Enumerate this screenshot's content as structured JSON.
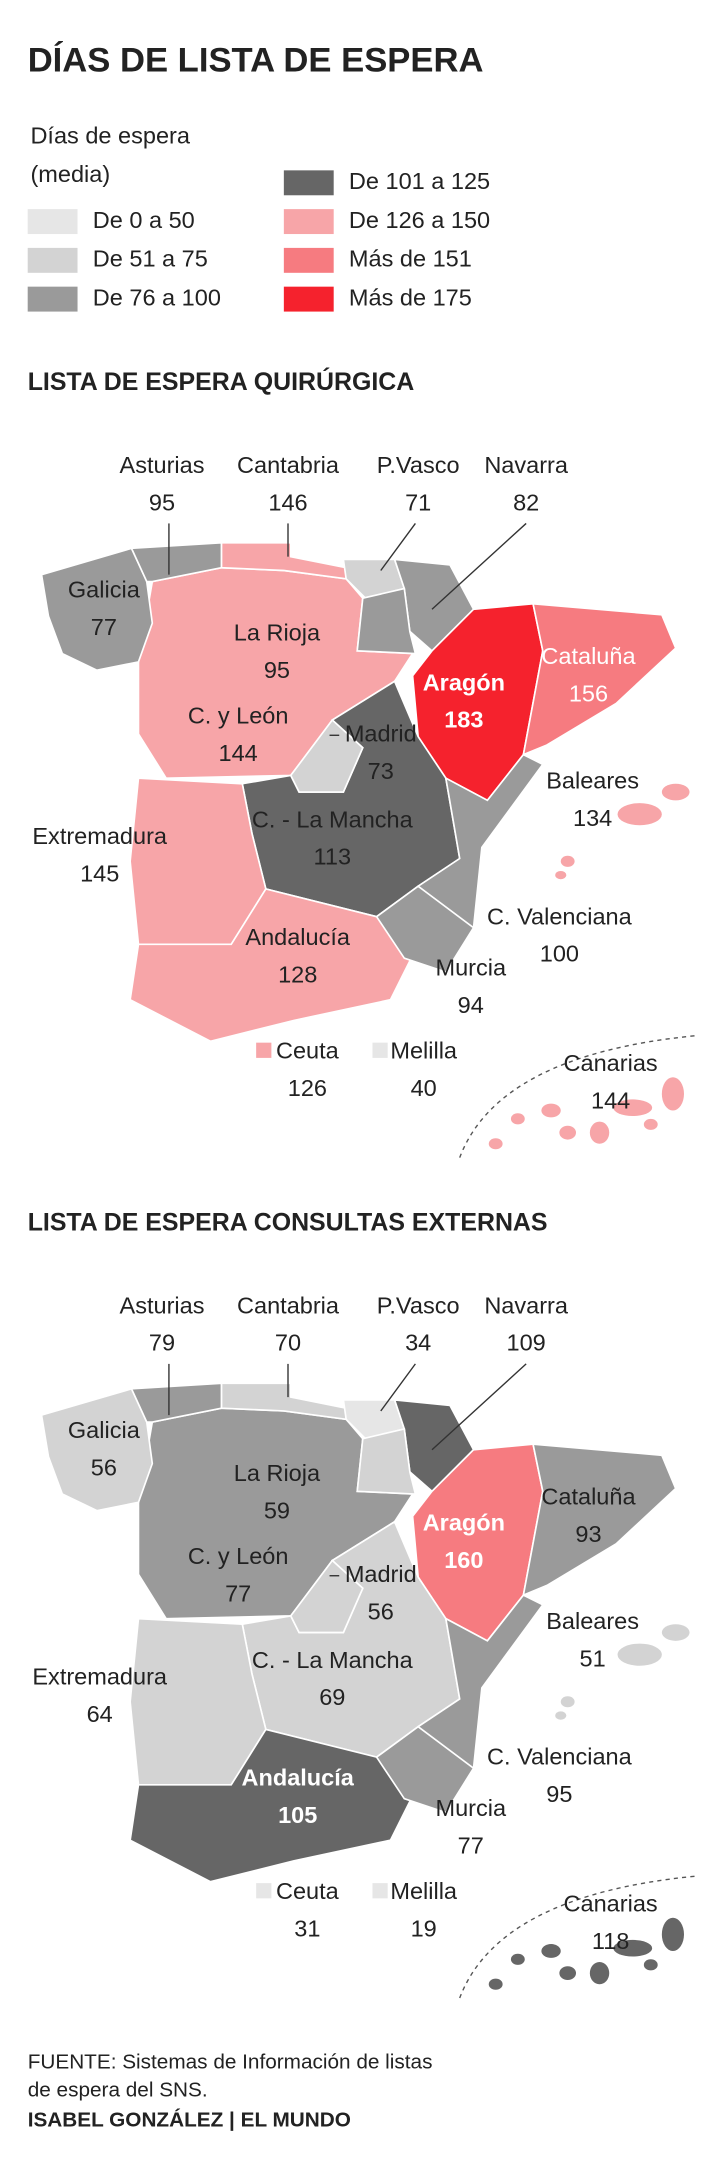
{
  "title": "DÍAS DE LISTA DE ESPERA",
  "legend": {
    "title": [
      "Días de espera",
      "(media)"
    ],
    "items": [
      {
        "label": "De 0 a 50",
        "color": "#e6e6e6"
      },
      {
        "label": "De 51 a 75",
        "color": "#d3d3d3"
      },
      {
        "label": "De 76 a 100",
        "color": "#9a9a9a"
      },
      {
        "label": "De 101 a 125",
        "color": "#666666"
      },
      {
        "label": "De 126 a 150",
        "color": "#f7a5a8"
      },
      {
        "label": "Más de 151",
        "color": "#f67b80"
      },
      {
        "label": "Más de 175",
        "color": "#f5222d"
      }
    ]
  },
  "maps": [
    {
      "title": "LISTA DE ESPERA QUIRÚRGICA",
      "regions": [
        {
          "name": "C. y León",
          "value": 144,
          "color": "#f7a5a8"
        },
        {
          "name": "Galicia",
          "value": 77,
          "color": "#9a9a9a"
        },
        {
          "name": "Asturias",
          "value": 95,
          "color": "#9a9a9a"
        },
        {
          "name": "Cantabria",
          "value": 146,
          "color": "#f7a5a8"
        },
        {
          "name": "P.Vasco",
          "value": 71,
          "color": "#d3d3d3"
        },
        {
          "name": "Navarra",
          "value": 82,
          "color": "#9a9a9a"
        },
        {
          "name": "La Rioja",
          "value": 95,
          "color": "#9a9a9a"
        },
        {
          "name": "Aragón",
          "value": 183,
          "color": "#f5222d"
        },
        {
          "name": "Cataluña",
          "value": 156,
          "color": "#f67b80"
        },
        {
          "name": "C. - La Mancha",
          "value": 113,
          "color": "#666666"
        },
        {
          "name": "Madrid",
          "value": 73,
          "color": "#d3d3d3"
        },
        {
          "name": "Extremadura",
          "value": 145,
          "color": "#f7a5a8"
        },
        {
          "name": "Andalucía",
          "value": 128,
          "color": "#f7a5a8"
        },
        {
          "name": "C. Valenciana",
          "value": 100,
          "color": "#9a9a9a"
        },
        {
          "name": "Murcia",
          "value": 94,
          "color": "#9a9a9a"
        },
        {
          "name": "Baleares",
          "value": 134,
          "color": "#f7a5a8"
        },
        {
          "name": "Canarias",
          "value": 144,
          "color": "#f7a5a8"
        },
        {
          "name": "Ceuta",
          "value": 126,
          "color": "#f7a5a8"
        },
        {
          "name": "Melilla",
          "value": 40,
          "color": "#e6e6e6"
        }
      ]
    },
    {
      "title": "LISTA DE ESPERA CONSULTAS EXTERNAS",
      "regions": [
        {
          "name": "C. y León",
          "value": 77,
          "color": "#9a9a9a"
        },
        {
          "name": "Galicia",
          "value": 56,
          "color": "#d3d3d3"
        },
        {
          "name": "Asturias",
          "value": 79,
          "color": "#9a9a9a"
        },
        {
          "name": "Cantabria",
          "value": 70,
          "color": "#d3d3d3"
        },
        {
          "name": "P.Vasco",
          "value": 34,
          "color": "#e6e6e6"
        },
        {
          "name": "Navarra",
          "value": 109,
          "color": "#666666"
        },
        {
          "name": "La Rioja",
          "value": 59,
          "color": "#d3d3d3"
        },
        {
          "name": "Aragón",
          "value": 160,
          "color": "#f67b80"
        },
        {
          "name": "Cataluña",
          "value": 93,
          "color": "#9a9a9a"
        },
        {
          "name": "C. - La Mancha",
          "value": 69,
          "color": "#d3d3d3"
        },
        {
          "name": "Madrid",
          "value": 56,
          "color": "#d3d3d3"
        },
        {
          "name": "Extremadura",
          "value": 64,
          "color": "#d3d3d3"
        },
        {
          "name": "Andalucía",
          "value": 105,
          "color": "#666666"
        },
        {
          "name": "C. Valenciana",
          "value": 95,
          "color": "#9a9a9a"
        },
        {
          "name": "Murcia",
          "value": 77,
          "color": "#9a9a9a"
        },
        {
          "name": "Baleares",
          "value": 51,
          "color": "#d3d3d3"
        },
        {
          "name": "Canarias",
          "value": 118,
          "color": "#666666"
        },
        {
          "name": "Ceuta",
          "value": 31,
          "color": "#e6e6e6"
        },
        {
          "name": "Melilla",
          "value": 19,
          "color": "#e6e6e6"
        }
      ]
    }
  ],
  "source": [
    "FUENTE: Sistemas de Información de listas",
    "de espera del SNS."
  ],
  "credit": "ISABEL GONZÁLEZ | EL MUNDO"
}
